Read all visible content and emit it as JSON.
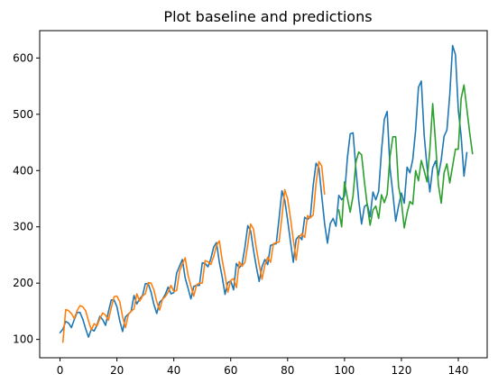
{
  "chart_data": {
    "type": "line",
    "title": "Plot baseline and predictions",
    "xlabel": "",
    "ylabel": "",
    "xlim": [
      -7.15,
      150.15
    ],
    "ylim": [
      67.4,
      648.6
    ],
    "xticks": [
      0,
      20,
      40,
      60,
      80,
      100,
      120,
      140
    ],
    "yticks": [
      100,
      200,
      300,
      400,
      500,
      600
    ],
    "grid": false,
    "legend": "none",
    "series": [
      {
        "color": "#1f77b4",
        "x_start": 0,
        "values": [
          112,
          118,
          132,
          129,
          121,
          135,
          148,
          148,
          136,
          119,
          104,
          118,
          115,
          126,
          141,
          135,
          125,
          149,
          170,
          170,
          158,
          133,
          114,
          140,
          145,
          150,
          178,
          163,
          172,
          178,
          199,
          199,
          184,
          162,
          146,
          166,
          171,
          180,
          193,
          181,
          183,
          218,
          230,
          242,
          209,
          191,
          172,
          194,
          196,
          196,
          236,
          235,
          229,
          243,
          264,
          272,
          237,
          211,
          180,
          201,
          204,
          188,
          235,
          227,
          234,
          264,
          302,
          293,
          259,
          229,
          203,
          229,
          242,
          233,
          267,
          269,
          270,
          315,
          364,
          347,
          312,
          274,
          237,
          278,
          284,
          277,
          317,
          313,
          318,
          374,
          413,
          405,
          355,
          306,
          271,
          306,
          315,
          301,
          356,
          348,
          355,
          422,
          465,
          467,
          404,
          347,
          305,
          336,
          340,
          318,
          362,
          348,
          363,
          435,
          491,
          505,
          404,
          359,
          310,
          337,
          360,
          342,
          406,
          396,
          420,
          472,
          548,
          559,
          463,
          407,
          362,
          405,
          417,
          391,
          419,
          461,
          472,
          535,
          622,
          606,
          508,
          461,
          390,
          432
        ]
      },
      {
        "color": "#ff7f0e",
        "x_start": 1,
        "values": [
          95,
          153,
          151,
          146,
          137,
          151,
          160,
          158,
          151,
          133,
          117,
          128,
          124,
          137,
          147,
          143,
          134,
          156,
          176,
          177,
          167,
          140,
          121,
          144,
          150,
          154,
          181,
          168,
          177,
          181,
          201,
          200,
          188,
          167,
          152,
          171,
          176,
          184,
          196,
          185,
          187,
          221,
          234,
          245,
          214,
          195,
          177,
          197,
          200,
          200,
          240,
          238,
          233,
          247,
          267,
          275,
          241,
          214,
          184,
          205,
          208,
          192,
          238,
          230,
          237,
          268,
          305,
          296,
          262,
          233,
          207,
          232,
          246,
          237,
          270,
          272,
          273,
          318,
          366,
          350,
          316,
          277,
          241,
          281,
          288,
          281,
          320,
          316,
          321,
          377,
          416,
          408,
          358
        ]
      },
      {
        "color": "#2ca02c",
        "x_start": 98,
        "values": [
          330,
          300,
          380,
          352,
          326,
          355,
          415,
          433,
          428,
          380,
          338,
          303,
          330,
          337,
          315,
          357,
          343,
          358,
          425,
          460,
          460,
          372,
          345,
          298,
          325,
          345,
          340,
          400,
          382,
          418,
          400,
          380,
          437,
          519,
          450,
          375,
          342,
          396,
          412,
          378,
          408,
          438,
          438,
          528,
          552,
          510,
          467,
          430
        ]
      }
    ]
  }
}
